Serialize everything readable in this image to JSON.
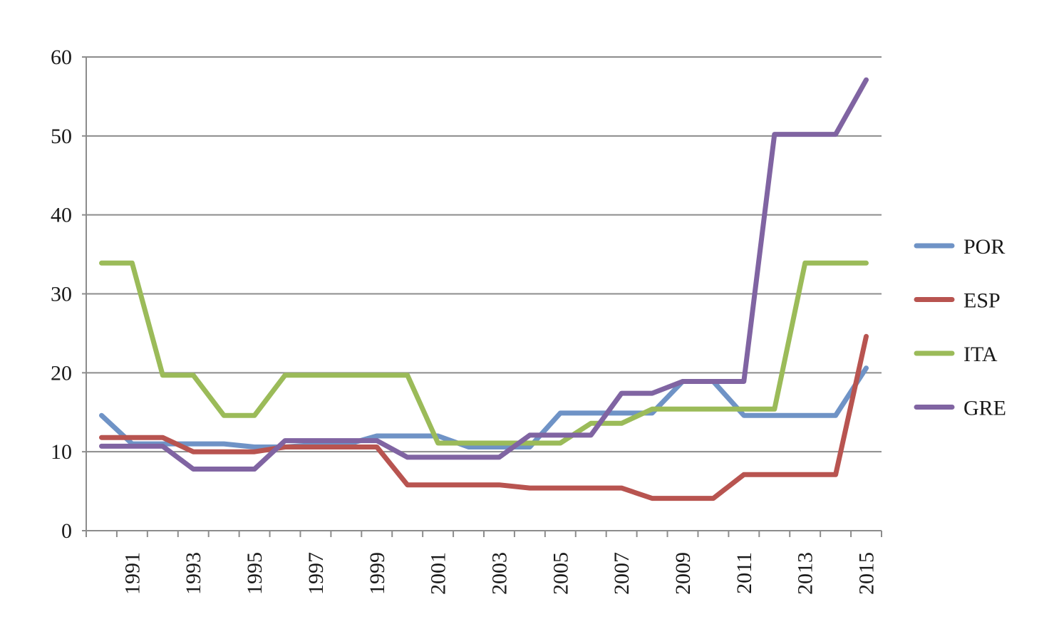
{
  "chart_data": {
    "type": "line",
    "title": "",
    "xlabel": "",
    "ylabel": "",
    "ylim": [
      0,
      60
    ],
    "yticks": [
      0,
      10,
      20,
      30,
      40,
      50,
      60
    ],
    "xticks": [
      1991,
      1993,
      1995,
      1997,
      1999,
      2001,
      2003,
      2005,
      2007,
      2009,
      2011,
      2013,
      2015
    ],
    "grid": "horizontal",
    "legend_position": "right",
    "x": [
      1990,
      1991,
      1992,
      1993,
      1994,
      1995,
      1996,
      1997,
      1998,
      1999,
      2000,
      2001,
      2002,
      2003,
      2004,
      2005,
      2006,
      2007,
      2008,
      2009,
      2010,
      2011,
      2012,
      2013,
      2014,
      2015
    ],
    "series": [
      {
        "name": "POR",
        "color": "#6f93c6",
        "values": [
          14.6,
          11.0,
          11.0,
          11.0,
          11.0,
          10.6,
          10.6,
          10.9,
          10.9,
          12.0,
          12.0,
          12.0,
          10.6,
          10.6,
          10.6,
          14.9,
          14.9,
          14.9,
          14.9,
          18.9,
          18.9,
          14.6,
          14.6,
          14.6,
          14.6,
          20.6
        ]
      },
      {
        "name": "ESP",
        "color": "#b85450",
        "values": [
          11.8,
          11.8,
          11.8,
          10.0,
          10.0,
          10.0,
          10.6,
          10.6,
          10.6,
          10.6,
          5.8,
          5.8,
          5.8,
          5.8,
          5.4,
          5.4,
          5.4,
          5.4,
          4.1,
          4.1,
          4.1,
          7.1,
          7.1,
          7.1,
          7.1,
          24.6
        ]
      },
      {
        "name": "ITA",
        "color": "#9bbb59",
        "values": [
          33.9,
          33.9,
          19.7,
          19.7,
          14.6,
          14.6,
          19.7,
          19.7,
          19.7,
          19.7,
          19.7,
          11.1,
          11.1,
          11.1,
          11.1,
          11.1,
          13.6,
          13.6,
          15.4,
          15.4,
          15.4,
          15.4,
          15.4,
          33.9,
          33.9,
          33.9
        ]
      },
      {
        "name": "GRE",
        "color": "#8064a2",
        "values": [
          10.7,
          10.7,
          10.7,
          7.8,
          7.8,
          7.8,
          11.4,
          11.4,
          11.4,
          11.4,
          9.3,
          9.3,
          9.3,
          9.3,
          12.1,
          12.1,
          12.1,
          17.4,
          17.4,
          18.9,
          18.9,
          18.9,
          50.2,
          50.2,
          50.2,
          57.1
        ]
      }
    ]
  }
}
